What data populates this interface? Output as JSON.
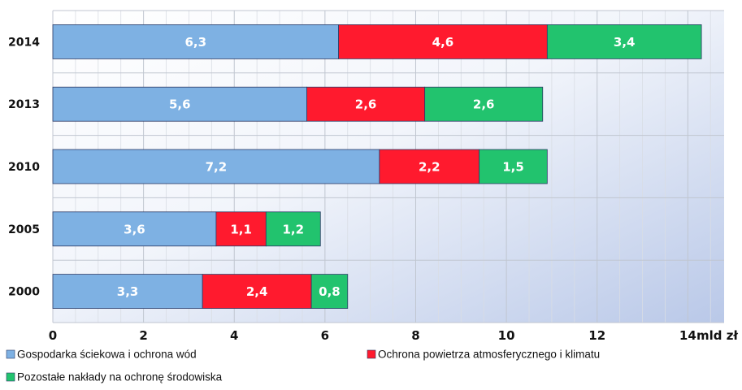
{
  "chart_data": {
    "type": "bar",
    "orientation": "horizontal",
    "stacked": true,
    "categories": [
      "2014",
      "2013",
      "2010",
      "2005",
      "2000"
    ],
    "series": [
      {
        "name": "Gospodarka ściekowa i ochrona wód",
        "color": "#7EB1E3",
        "values": [
          6.3,
          5.6,
          7.2,
          3.6,
          3.3
        ],
        "labels": [
          "6,3",
          "5,6",
          "7,2",
          "3,6",
          "3,3"
        ]
      },
      {
        "name": "Ochrona powietrza atmosferycznego i klimatu",
        "color": "#FF1A2E",
        "values": [
          4.6,
          2.6,
          2.2,
          1.1,
          2.4
        ],
        "labels": [
          "4,6",
          "2,6",
          "2,2",
          "1,1",
          "2,4"
        ]
      },
      {
        "name": "Pozostałe nakłady na ochronę środowiska",
        "color": "#22C36E",
        "values": [
          3.4,
          2.6,
          1.5,
          1.2,
          0.8
        ],
        "labels": [
          "3,4",
          "2,6",
          "1,5",
          "1,2",
          "0,8"
        ]
      }
    ],
    "xlim": [
      0,
      14.8
    ],
    "xticks": [
      0,
      2,
      4,
      6,
      8,
      10,
      12,
      14
    ],
    "xtick_labels": [
      "0",
      "2",
      "4",
      "6",
      "8",
      "10",
      "12",
      "14"
    ],
    "xlabel": "mld zł",
    "grid": true,
    "legend_position": "bottom"
  }
}
